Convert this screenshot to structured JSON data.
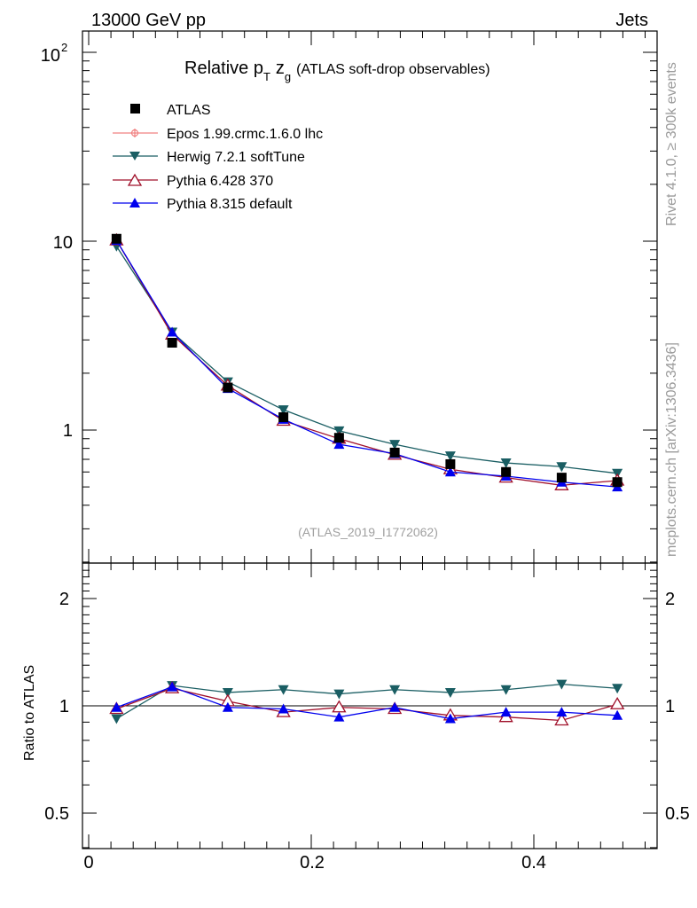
{
  "header": {
    "left": "13000 GeV pp",
    "right": "Jets"
  },
  "side_labels": {
    "rivet": "Rivet 4.1.0, ≥ 300k events",
    "mcplots": "mcplots.cern.ch [arXiv:1306.3436]"
  },
  "title": {
    "prefix": "Relative p",
    "pt_sub": "T",
    "z": "z",
    "z_sub": "g",
    "suffix": "(ATLAS soft-drop observables)"
  },
  "watermark": "(ATLAS_2019_I1772062)",
  "legend": {
    "atlas": "ATLAS",
    "epos": "Epos 1.99.crmc.1.6.0 lhc",
    "herwig": "Herwig 7.2.1 softTune",
    "pythia6": "Pythia 6.428 370",
    "pythia8": "Pythia 8.315 default"
  },
  "colors": {
    "atlas": "#000000",
    "epos": "#f08080",
    "herwig": "#1a5e63",
    "pythia6": "#a0102a",
    "pythia8": "#0000ee"
  },
  "axes": {
    "main_y_ticks": [
      "10",
      "1"
    ],
    "main_y_ticks_sup": {
      "base": "10",
      "exp": "2"
    },
    "ratio_ylabel": "Ratio to ATLAS",
    "ratio_y_ticks": [
      "2",
      "1",
      "0.5"
    ],
    "x_ticks": [
      "0",
      "0.2",
      "0.4"
    ]
  },
  "chart_data": {
    "type": "line",
    "xlim": [
      0,
      0.5
    ],
    "main_ylim_log": [
      0.25,
      150
    ],
    "ratio_ylim_log": [
      0.4,
      2.4
    ],
    "x": [
      0.025,
      0.075,
      0.125,
      0.175,
      0.225,
      0.275,
      0.325,
      0.375,
      0.425,
      0.475
    ],
    "data": {
      "name": "ATLAS",
      "values": [
        10.3,
        2.9,
        1.68,
        1.17,
        0.91,
        0.76,
        0.66,
        0.6,
        0.56,
        0.53
      ],
      "errors": [
        0.15,
        0.05,
        0.03,
        0.02,
        0.015,
        0.015,
        0.012,
        0.012,
        0.012,
        0.012
      ]
    },
    "series": [
      {
        "key": "herwig",
        "name": "Herwig 7.2.1 softTune",
        "marker": "triangle-down",
        "values": [
          9.4,
          3.3,
          1.8,
          1.28,
          0.99,
          0.84,
          0.73,
          0.67,
          0.64,
          0.59
        ]
      },
      {
        "key": "pythia6",
        "name": "Pythia 6.428 370",
        "marker": "triangle-up-open",
        "values": [
          10.1,
          3.2,
          1.72,
          1.12,
          0.9,
          0.74,
          0.62,
          0.56,
          0.51,
          0.54
        ]
      },
      {
        "key": "pythia8",
        "name": "Pythia 8.315 default",
        "marker": "triangle-up",
        "values": [
          10.1,
          3.3,
          1.66,
          1.14,
          0.84,
          0.75,
          0.6,
          0.57,
          0.53,
          0.5
        ]
      }
    ],
    "ratios": [
      {
        "key": "herwig",
        "values": [
          0.92,
          1.14,
          1.09,
          1.11,
          1.08,
          1.11,
          1.09,
          1.11,
          1.15,
          1.12
        ]
      },
      {
        "key": "pythia6",
        "values": [
          0.98,
          1.12,
          1.03,
          0.96,
          0.99,
          0.98,
          0.94,
          0.93,
          0.91,
          1.01
        ]
      },
      {
        "key": "pythia8",
        "values": [
          0.99,
          1.13,
          0.99,
          0.98,
          0.93,
          0.99,
          0.92,
          0.96,
          0.96,
          0.94
        ]
      }
    ]
  }
}
